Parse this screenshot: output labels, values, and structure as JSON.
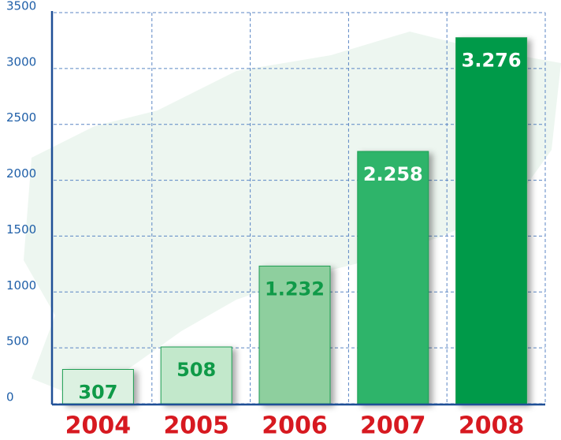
{
  "chart_data": {
    "type": "bar",
    "categories": [
      "2004",
      "2005",
      "2006",
      "2007",
      "2008"
    ],
    "values": [
      307,
      508,
      1232,
      2258,
      3276
    ],
    "value_labels": [
      "307",
      "508",
      "1.232",
      "2.258",
      "3.276"
    ],
    "colors": [
      "#dcf1e1",
      "#c2e8cb",
      "#8ecf9e",
      "#2db46a",
      "#009a4a"
    ],
    "label_colors": [
      "#0f9a48",
      "#0f9a48",
      "#0f9a48",
      "#ffffff",
      "#ffffff"
    ],
    "ylim": [
      0,
      3500
    ],
    "yticks": [
      0,
      500,
      1000,
      1500,
      2000,
      2500,
      3000,
      3500
    ],
    "grid": true
  }
}
